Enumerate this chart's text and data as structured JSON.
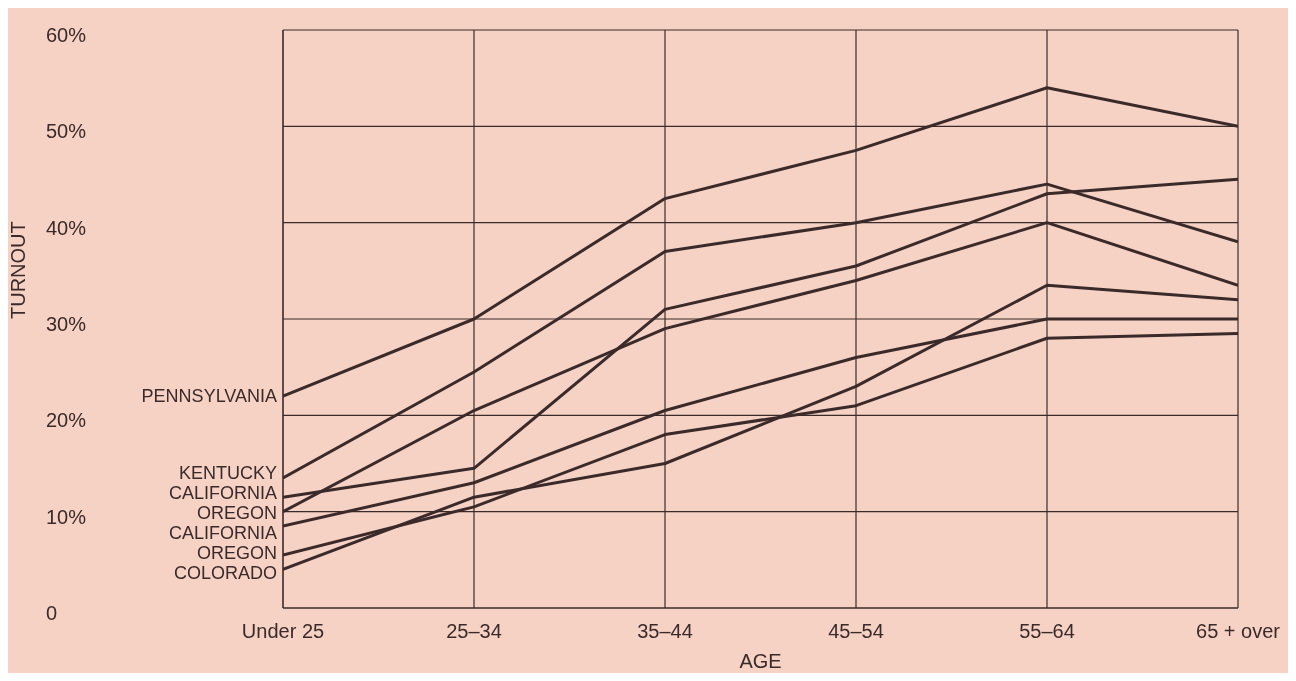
{
  "chart_data": {
    "type": "line",
    "xlabel": "AGE",
    "ylabel": "TURNOUT",
    "categories": [
      "Under 25",
      "25–34",
      "35–44",
      "45–54",
      "55–64",
      "65 + over"
    ],
    "series": [
      {
        "name": "PENNSYLVANIA",
        "color": "#3b2a2a",
        "values": [
          22,
          30,
          42.5,
          47.5,
          54,
          50
        ]
      },
      {
        "name": "KENTUCKY",
        "color": "#3b2a2a",
        "values": [
          13.5,
          24.5,
          37,
          40,
          44,
          38
        ]
      },
      {
        "name": "CALIFORNIA",
        "color": "#3b2a2a",
        "values": [
          11.5,
          14.5,
          31,
          35.5,
          43,
          44.5
        ]
      },
      {
        "name": "OREGON",
        "color": "#3b2a2a",
        "values": [
          10,
          20.5,
          29,
          34,
          40,
          33.5
        ]
      },
      {
        "name": "CALIFORNIA",
        "color": "#3b2a2a",
        "values": [
          8.5,
          13,
          20.5,
          26,
          30,
          30
        ]
      },
      {
        "name": "OREGON",
        "color": "#3b2a2a",
        "values": [
          5.5,
          10.5,
          18,
          21,
          28,
          28.5
        ]
      },
      {
        "name": "COLORADO",
        "color": "#3b2a2a",
        "values": [
          4,
          11.5,
          15,
          23,
          33.5,
          32
        ]
      }
    ],
    "ylim": [
      0,
      60
    ],
    "yticks": [
      0,
      {
        "value": 10,
        "label": "10%"
      },
      {
        "value": 20,
        "label": "20%"
      },
      {
        "value": 30,
        "label": "30%"
      },
      {
        "value": 40,
        "label": "40%"
      },
      {
        "value": 50,
        "label": "50%"
      },
      {
        "value": 60,
        "label": "60%"
      }
    ],
    "grid": true,
    "marker": "none"
  }
}
